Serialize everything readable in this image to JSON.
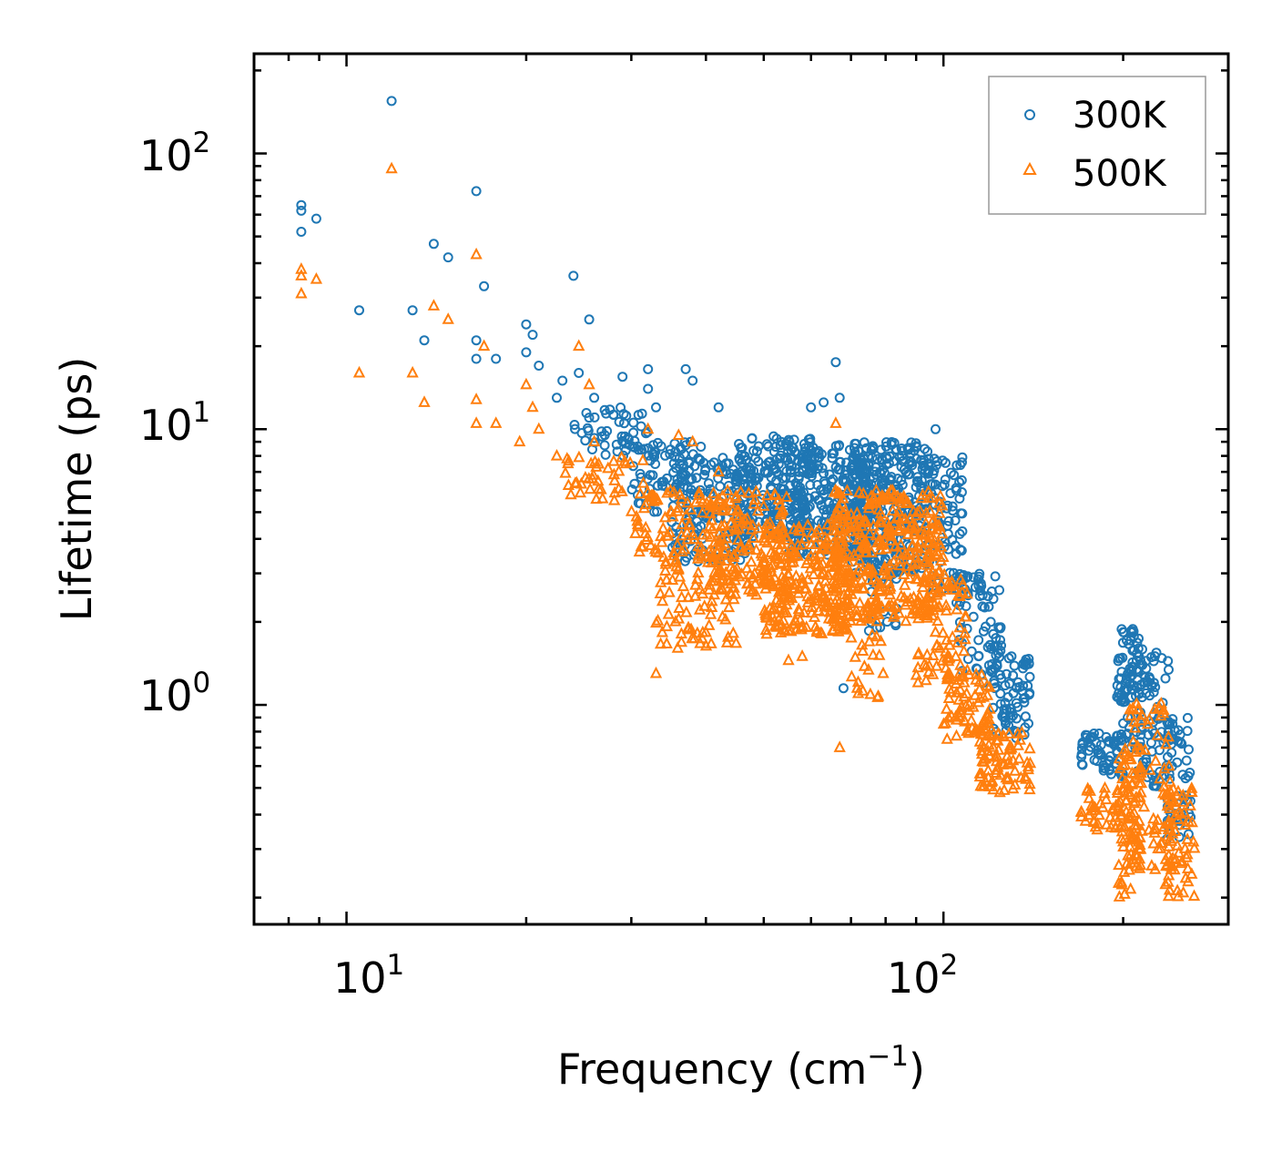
{
  "chart_data": {
    "type": "scatter",
    "xscale": "log",
    "yscale": "log",
    "xlabel": "Frequency (cm",
    "xlabel_sup": "−1",
    "xlabel_end": ")",
    "ylabel": "Lifetime (ps)",
    "xlim": [
      7.0,
      300
    ],
    "ylim": [
      0.16,
      230
    ],
    "xticks": [
      {
        "base": "10",
        "exp": "1",
        "value": 10
      },
      {
        "base": "10",
        "exp": "2",
        "value": 100
      }
    ],
    "yticks": [
      {
        "base": "10",
        "exp": "0",
        "value": 1
      },
      {
        "base": "10",
        "exp": "1",
        "value": 10
      },
      {
        "base": "10",
        "exp": "2",
        "value": 100
      }
    ],
    "legend_position": "top-right",
    "series": [
      {
        "name": "300K",
        "color": "#1f77b4",
        "marker": "circle",
        "outliers": [
          [
            8.4,
            65
          ],
          [
            8.4,
            62
          ],
          [
            8.4,
            52
          ],
          [
            8.9,
            58
          ],
          [
            10.5,
            27
          ],
          [
            11.9,
            155
          ],
          [
            12.9,
            27
          ],
          [
            13.5,
            21
          ],
          [
            14.0,
            47
          ],
          [
            14.8,
            42
          ],
          [
            16.5,
            73
          ],
          [
            16.5,
            21
          ],
          [
            16.5,
            18
          ],
          [
            17.0,
            33
          ],
          [
            17.8,
            18
          ],
          [
            20.0,
            24
          ],
          [
            20.0,
            19
          ],
          [
            20.5,
            22
          ],
          [
            21.0,
            17
          ],
          [
            22.5,
            13
          ],
          [
            23.0,
            15
          ],
          [
            24.0,
            36
          ],
          [
            24.5,
            16
          ],
          [
            25.5,
            25
          ],
          [
            26.0,
            13
          ],
          [
            29.0,
            15.5
          ],
          [
            32.0,
            16.5
          ],
          [
            32.0,
            14
          ],
          [
            33.0,
            12
          ],
          [
            37.0,
            16.5
          ],
          [
            38.0,
            15
          ],
          [
            42.0,
            12
          ],
          [
            66.0,
            17.5
          ],
          [
            67.0,
            13
          ],
          [
            60.0,
            12
          ],
          [
            63.0,
            12.5
          ],
          [
            68.0,
            1.15
          ],
          [
            97.0,
            10
          ],
          [
            120.0,
            2.0
          ],
          [
            130.0,
            1.5
          ]
        ],
        "clusters": [
          {
            "xr": [
              24,
              32
            ],
            "yr": [
              8,
              12
            ],
            "n": 50
          },
          {
            "xr": [
              30,
              40
            ],
            "yr": [
              5,
              9
            ],
            "n": 80
          },
          {
            "xr": [
              35,
              48
            ],
            "yr": [
              3.3,
              8
            ],
            "n": 160
          },
          {
            "xr": [
              45,
              60
            ],
            "yr": [
              4,
              9.5
            ],
            "n": 200
          },
          {
            "xr": [
              55,
              75
            ],
            "yr": [
              3.5,
              9
            ],
            "n": 260
          },
          {
            "xr": [
              70,
              95
            ],
            "yr": [
              3,
              9
            ],
            "n": 320
          },
          {
            "xr": [
              75,
              85
            ],
            "yr": [
              1.8,
              3
            ],
            "n": 20
          },
          {
            "xr": [
              95,
              108
            ],
            "yr": [
              2.5,
              8
            ],
            "n": 80
          },
          {
            "xr": [
              105,
              125
            ],
            "yr": [
              1.2,
              3
            ],
            "n": 70
          },
          {
            "xr": [
              120,
              140
            ],
            "yr": [
              0.75,
              1.5
            ],
            "n": 70
          },
          {
            "xr": [
              170,
              200
            ],
            "yr": [
              0.55,
              0.8
            ],
            "n": 60
          },
          {
            "xr": [
              195,
              215
            ],
            "yr": [
              0.7,
              1.9
            ],
            "n": 80
          },
          {
            "xr": [
              210,
              240
            ],
            "yr": [
              0.5,
              1.6
            ],
            "n": 80
          },
          {
            "xr": [
              235,
              260
            ],
            "yr": [
              0.32,
              0.9
            ],
            "n": 60
          }
        ]
      },
      {
        "name": "500K",
        "color": "#ff7f0e",
        "marker": "triangle",
        "outliers": [
          [
            8.4,
            38
          ],
          [
            8.4,
            36
          ],
          [
            8.4,
            31
          ],
          [
            8.9,
            35
          ],
          [
            10.5,
            16
          ],
          [
            11.9,
            88
          ],
          [
            12.9,
            16
          ],
          [
            13.5,
            12.5
          ],
          [
            14.0,
            28
          ],
          [
            14.8,
            25
          ],
          [
            16.5,
            43
          ],
          [
            16.5,
            12.8
          ],
          [
            16.5,
            10.5
          ],
          [
            17.0,
            20
          ],
          [
            17.8,
            10.5
          ],
          [
            19.5,
            9
          ],
          [
            20.0,
            14.5
          ],
          [
            20.5,
            12
          ],
          [
            21.0,
            10
          ],
          [
            22.5,
            8
          ],
          [
            23.5,
            7.5
          ],
          [
            24.5,
            20
          ],
          [
            25.5,
            14.5
          ],
          [
            26.0,
            9
          ],
          [
            32.0,
            10
          ],
          [
            33.0,
            1.3
          ],
          [
            36.0,
            9.5
          ],
          [
            38.0,
            9
          ],
          [
            42.0,
            7
          ],
          [
            55.0,
            1.45
          ],
          [
            58.0,
            1.5
          ],
          [
            66.0,
            10.5
          ],
          [
            67.0,
            0.7
          ],
          [
            72.0,
            1.1
          ]
        ],
        "clusters": [
          {
            "xr": [
              23,
              32
            ],
            "yr": [
              5.5,
              8
            ],
            "n": 40
          },
          {
            "xr": [
              30,
              40
            ],
            "yr": [
              3.5,
              6
            ],
            "n": 70
          },
          {
            "xr": [
              33,
              45
            ],
            "yr": [
              1.6,
              3.5
            ],
            "n": 90
          },
          {
            "xr": [
              40,
              55
            ],
            "yr": [
              2.5,
              6
            ],
            "n": 160
          },
          {
            "xr": [
              50,
              70
            ],
            "yr": [
              1.8,
              4.5
            ],
            "n": 260
          },
          {
            "xr": [
              65,
              100
            ],
            "yr": [
              2,
              6
            ],
            "n": 360
          },
          {
            "xr": [
              70,
              80
            ],
            "yr": [
              1.05,
              1.8
            ],
            "n": 20
          },
          {
            "xr": [
              90,
              110
            ],
            "yr": [
              1.2,
              3
            ],
            "n": 80
          },
          {
            "xr": [
              100,
              120
            ],
            "yr": [
              0.75,
              1.3
            ],
            "n": 70
          },
          {
            "xr": [
              115,
              140
            ],
            "yr": [
              0.48,
              0.8
            ],
            "n": 80
          },
          {
            "xr": [
              170,
              200
            ],
            "yr": [
              0.35,
              0.5
            ],
            "n": 40
          },
          {
            "xr": [
              195,
              215
            ],
            "yr": [
              0.2,
              0.7
            ],
            "n": 80
          },
          {
            "xr": [
              205,
              240
            ],
            "yr": [
              0.25,
              1.05
            ],
            "n": 80
          },
          {
            "xr": [
              235,
              265
            ],
            "yr": [
              0.2,
              0.5
            ],
            "n": 60
          }
        ]
      }
    ]
  }
}
